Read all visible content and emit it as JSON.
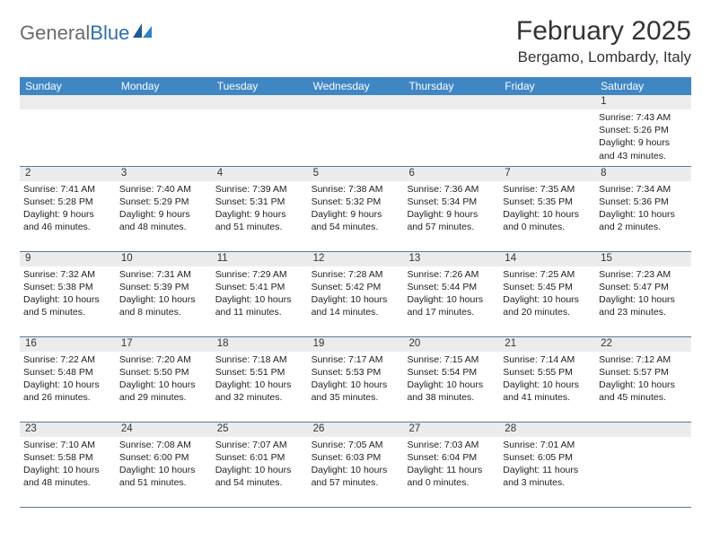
{
  "logo": {
    "text1": "General",
    "text2": "Blue"
  },
  "title": "February 2025",
  "location": "Bergamo, Lombardy, Italy",
  "colors": {
    "header_bg": "#3f86c5",
    "header_text": "#ffffff",
    "daynum_bg": "#ececec",
    "row_border": "#5a7a98",
    "logo_gray": "#6b6b6b",
    "logo_blue": "#2f6fa8"
  },
  "weekdays": [
    "Sunday",
    "Monday",
    "Tuesday",
    "Wednesday",
    "Thursday",
    "Friday",
    "Saturday"
  ],
  "weeks": [
    [
      {
        "n": "",
        "sr": "",
        "ss": "",
        "dl": ""
      },
      {
        "n": "",
        "sr": "",
        "ss": "",
        "dl": ""
      },
      {
        "n": "",
        "sr": "",
        "ss": "",
        "dl": ""
      },
      {
        "n": "",
        "sr": "",
        "ss": "",
        "dl": ""
      },
      {
        "n": "",
        "sr": "",
        "ss": "",
        "dl": ""
      },
      {
        "n": "",
        "sr": "",
        "ss": "",
        "dl": ""
      },
      {
        "n": "1",
        "sr": "Sunrise: 7:43 AM",
        "ss": "Sunset: 5:26 PM",
        "dl": "Daylight: 9 hours and 43 minutes."
      }
    ],
    [
      {
        "n": "2",
        "sr": "Sunrise: 7:41 AM",
        "ss": "Sunset: 5:28 PM",
        "dl": "Daylight: 9 hours and 46 minutes."
      },
      {
        "n": "3",
        "sr": "Sunrise: 7:40 AM",
        "ss": "Sunset: 5:29 PM",
        "dl": "Daylight: 9 hours and 48 minutes."
      },
      {
        "n": "4",
        "sr": "Sunrise: 7:39 AM",
        "ss": "Sunset: 5:31 PM",
        "dl": "Daylight: 9 hours and 51 minutes."
      },
      {
        "n": "5",
        "sr": "Sunrise: 7:38 AM",
        "ss": "Sunset: 5:32 PM",
        "dl": "Daylight: 9 hours and 54 minutes."
      },
      {
        "n": "6",
        "sr": "Sunrise: 7:36 AM",
        "ss": "Sunset: 5:34 PM",
        "dl": "Daylight: 9 hours and 57 minutes."
      },
      {
        "n": "7",
        "sr": "Sunrise: 7:35 AM",
        "ss": "Sunset: 5:35 PM",
        "dl": "Daylight: 10 hours and 0 minutes."
      },
      {
        "n": "8",
        "sr": "Sunrise: 7:34 AM",
        "ss": "Sunset: 5:36 PM",
        "dl": "Daylight: 10 hours and 2 minutes."
      }
    ],
    [
      {
        "n": "9",
        "sr": "Sunrise: 7:32 AM",
        "ss": "Sunset: 5:38 PM",
        "dl": "Daylight: 10 hours and 5 minutes."
      },
      {
        "n": "10",
        "sr": "Sunrise: 7:31 AM",
        "ss": "Sunset: 5:39 PM",
        "dl": "Daylight: 10 hours and 8 minutes."
      },
      {
        "n": "11",
        "sr": "Sunrise: 7:29 AM",
        "ss": "Sunset: 5:41 PM",
        "dl": "Daylight: 10 hours and 11 minutes."
      },
      {
        "n": "12",
        "sr": "Sunrise: 7:28 AM",
        "ss": "Sunset: 5:42 PM",
        "dl": "Daylight: 10 hours and 14 minutes."
      },
      {
        "n": "13",
        "sr": "Sunrise: 7:26 AM",
        "ss": "Sunset: 5:44 PM",
        "dl": "Daylight: 10 hours and 17 minutes."
      },
      {
        "n": "14",
        "sr": "Sunrise: 7:25 AM",
        "ss": "Sunset: 5:45 PM",
        "dl": "Daylight: 10 hours and 20 minutes."
      },
      {
        "n": "15",
        "sr": "Sunrise: 7:23 AM",
        "ss": "Sunset: 5:47 PM",
        "dl": "Daylight: 10 hours and 23 minutes."
      }
    ],
    [
      {
        "n": "16",
        "sr": "Sunrise: 7:22 AM",
        "ss": "Sunset: 5:48 PM",
        "dl": "Daylight: 10 hours and 26 minutes."
      },
      {
        "n": "17",
        "sr": "Sunrise: 7:20 AM",
        "ss": "Sunset: 5:50 PM",
        "dl": "Daylight: 10 hours and 29 minutes."
      },
      {
        "n": "18",
        "sr": "Sunrise: 7:18 AM",
        "ss": "Sunset: 5:51 PM",
        "dl": "Daylight: 10 hours and 32 minutes."
      },
      {
        "n": "19",
        "sr": "Sunrise: 7:17 AM",
        "ss": "Sunset: 5:53 PM",
        "dl": "Daylight: 10 hours and 35 minutes."
      },
      {
        "n": "20",
        "sr": "Sunrise: 7:15 AM",
        "ss": "Sunset: 5:54 PM",
        "dl": "Daylight: 10 hours and 38 minutes."
      },
      {
        "n": "21",
        "sr": "Sunrise: 7:14 AM",
        "ss": "Sunset: 5:55 PM",
        "dl": "Daylight: 10 hours and 41 minutes."
      },
      {
        "n": "22",
        "sr": "Sunrise: 7:12 AM",
        "ss": "Sunset: 5:57 PM",
        "dl": "Daylight: 10 hours and 45 minutes."
      }
    ],
    [
      {
        "n": "23",
        "sr": "Sunrise: 7:10 AM",
        "ss": "Sunset: 5:58 PM",
        "dl": "Daylight: 10 hours and 48 minutes."
      },
      {
        "n": "24",
        "sr": "Sunrise: 7:08 AM",
        "ss": "Sunset: 6:00 PM",
        "dl": "Daylight: 10 hours and 51 minutes."
      },
      {
        "n": "25",
        "sr": "Sunrise: 7:07 AM",
        "ss": "Sunset: 6:01 PM",
        "dl": "Daylight: 10 hours and 54 minutes."
      },
      {
        "n": "26",
        "sr": "Sunrise: 7:05 AM",
        "ss": "Sunset: 6:03 PM",
        "dl": "Daylight: 10 hours and 57 minutes."
      },
      {
        "n": "27",
        "sr": "Sunrise: 7:03 AM",
        "ss": "Sunset: 6:04 PM",
        "dl": "Daylight: 11 hours and 0 minutes."
      },
      {
        "n": "28",
        "sr": "Sunrise: 7:01 AM",
        "ss": "Sunset: 6:05 PM",
        "dl": "Daylight: 11 hours and 3 minutes."
      },
      {
        "n": "",
        "sr": "",
        "ss": "",
        "dl": ""
      }
    ]
  ]
}
